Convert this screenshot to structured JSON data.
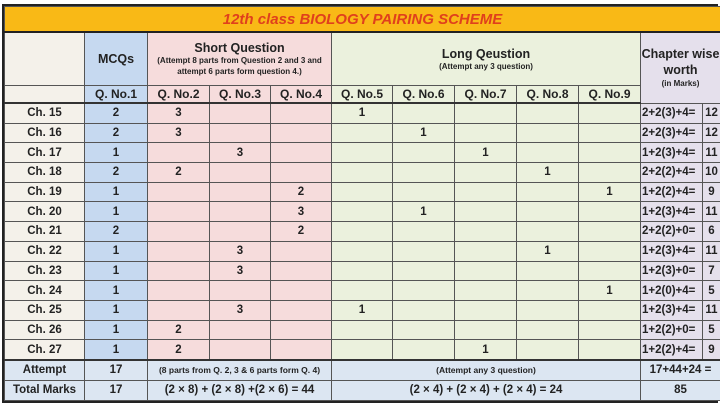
{
  "title": "12th class BIOLOGY PAIRING SCHEME",
  "header": {
    "mcqs": "MCQs",
    "short": {
      "title": "Short Question",
      "note": "(Attempt 8 parts from Question 2 and 3 and attempt 6 parts form question 4.)"
    },
    "long": {
      "title": "Long Qeustion",
      "note": "(Attempt any 3 question)"
    },
    "worth": {
      "title": "Chapter wise worth",
      "note": "(in Marks)"
    }
  },
  "questions": [
    "Q. No.1",
    "Q. No.2",
    "Q. No.3",
    "Q. No.4",
    "Q. No.5",
    "Q. No.6",
    "Q. No.7",
    "Q. No.8",
    "Q. No.9"
  ],
  "rows": [
    {
      "ch": "Ch. 15",
      "q": [
        "2",
        "3",
        "",
        "",
        "1",
        "",
        "",
        "",
        ""
      ],
      "formula": "2+2(3)+4=",
      "total": "12"
    },
    {
      "ch": "Ch. 16",
      "q": [
        "2",
        "3",
        "",
        "",
        "",
        "1",
        "",
        "",
        ""
      ],
      "formula": "2+2(3)+4=",
      "total": "12"
    },
    {
      "ch": "Ch. 17",
      "q": [
        "1",
        "",
        "3",
        "",
        "",
        "",
        "1",
        "",
        ""
      ],
      "formula": "1+2(3)+4=",
      "total": "11"
    },
    {
      "ch": "Ch. 18",
      "q": [
        "2",
        "2",
        "",
        "",
        "",
        "",
        "",
        "1",
        ""
      ],
      "formula": "2+2(2)+4=",
      "total": "10"
    },
    {
      "ch": "Ch. 19",
      "q": [
        "1",
        "",
        "",
        "2",
        "",
        "",
        "",
        "",
        "1"
      ],
      "formula": "1+2(2)+4=",
      "total": "9"
    },
    {
      "ch": "Ch. 20",
      "q": [
        "1",
        "",
        "",
        "3",
        "",
        "1",
        "",
        "",
        ""
      ],
      "formula": "1+2(3)+4=",
      "total": "11"
    },
    {
      "ch": "Ch. 21",
      "q": [
        "2",
        "",
        "",
        "2",
        "",
        "",
        "",
        "",
        ""
      ],
      "formula": "2+2(2)+0=",
      "total": "6"
    },
    {
      "ch": "Ch. 22",
      "q": [
        "1",
        "",
        "3",
        "",
        "",
        "",
        "",
        "1",
        ""
      ],
      "formula": "1+2(3)+4=",
      "total": "11"
    },
    {
      "ch": "Ch. 23",
      "q": [
        "1",
        "",
        "3",
        "",
        "",
        "",
        "",
        "",
        ""
      ],
      "formula": "1+2(3)+0=",
      "total": "7"
    },
    {
      "ch": "Ch. 24",
      "q": [
        "1",
        "",
        "",
        "",
        "",
        "",
        "",
        "",
        "1"
      ],
      "formula": "1+2(0)+4=",
      "total": "5"
    },
    {
      "ch": "Ch. 25",
      "q": [
        "1",
        "",
        "3",
        "",
        "1",
        "",
        "",
        "",
        ""
      ],
      "formula": "1+2(3)+4=",
      "total": "11"
    },
    {
      "ch": "Ch. 26",
      "q": [
        "1",
        "2",
        "",
        "",
        "",
        "",
        "",
        "",
        ""
      ],
      "formula": "1+2(2)+0=",
      "total": "5"
    },
    {
      "ch": "Ch. 27",
      "q": [
        "1",
        "2",
        "",
        "",
        "",
        "",
        "1",
        "",
        ""
      ],
      "formula": "1+2(2)+4=",
      "total": "9"
    }
  ],
  "attempt": {
    "label": "Attempt",
    "mcq": "17",
    "short": "(8 parts from Q. 2, 3 & 6 parts form Q. 4)",
    "long": "(Attempt any 3 question)",
    "worth": "17+44+24 ="
  },
  "total_marks": {
    "label": "Total Marks",
    "mcq": "17",
    "short": "(2 × 8) + (2 × 8) +(2 × 6) = 44",
    "long": "(2 × 4) + (2 × 4) + (2 × 4) = 24",
    "worth": "85"
  },
  "colors": {
    "title_bg": "#f9b916",
    "title_text": "#e0401c",
    "mcq": "#c6d9f0",
    "short": "#f6dcdc",
    "long": "#ebf1dd",
    "worth": "#e5e0ec"
  }
}
